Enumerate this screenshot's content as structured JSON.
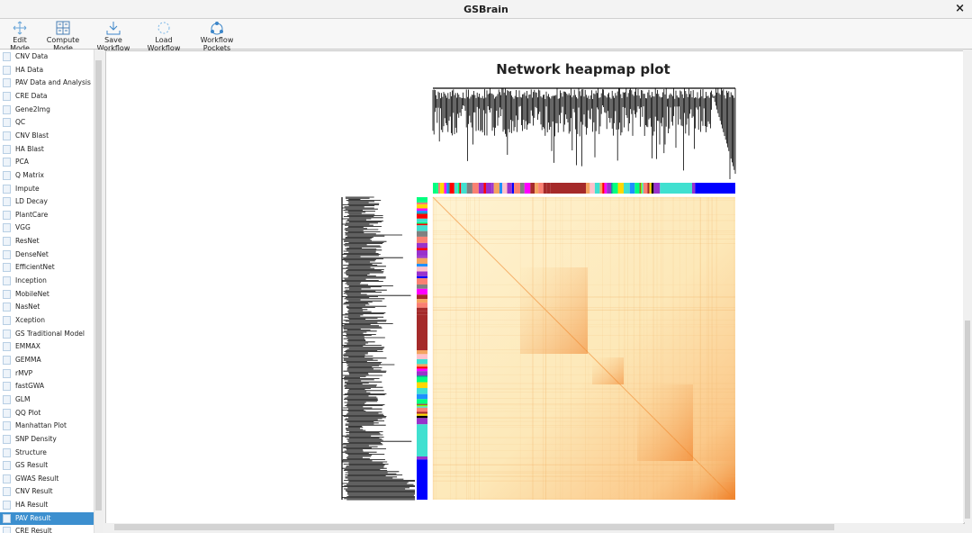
{
  "window": {
    "title": "GSBrain",
    "close": "×"
  },
  "toolbar": [
    "Edit Mode",
    "Compute Mode",
    "Save Workflow",
    "Load Workflow",
    "Workflow Pockets"
  ],
  "sidebar": {
    "items": [
      "CNV Data",
      "HA Data",
      "PAV Data and Analysis",
      "CRE Data",
      "Gene2Img",
      "QC",
      "CNV Blast",
      "HA Blast",
      "PCA",
      "Q Matrix",
      "Impute",
      "LD Decay",
      "PlantCare",
      "VGG",
      "ResNet",
      "DenseNet",
      "EfficientNet",
      "Inception",
      "MobileNet",
      "NasNet",
      "Xception",
      "GS Traditional Model",
      "EMMAX",
      "GEMMA",
      "rMVP",
      "fastGWA",
      "GLM",
      "QQ Plot",
      "Manhattan Plot",
      "SNP Density",
      "Structure",
      "GS Result",
      "GWAS Result",
      "CNV Result",
      "HA Result",
      "PAV Result",
      "CRE Result"
    ]
  },
  "plot": {
    "title": "Network heapmap plot"
  }
}
